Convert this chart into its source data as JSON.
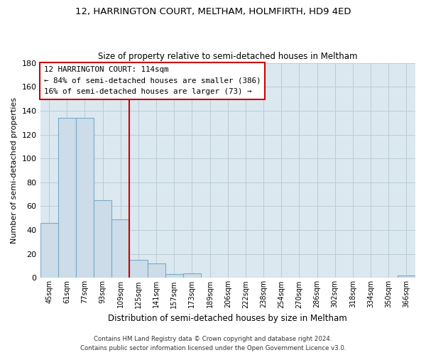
{
  "title": "12, HARRINGTON COURT, MELTHAM, HOLMFIRTH, HD9 4ED",
  "subtitle": "Size of property relative to semi-detached houses in Meltham",
  "xlabel": "Distribution of semi-detached houses by size in Meltham",
  "ylabel": "Number of semi-detached properties",
  "bar_labels": [
    "45sqm",
    "61sqm",
    "77sqm",
    "93sqm",
    "109sqm",
    "125sqm",
    "141sqm",
    "157sqm",
    "173sqm",
    "189sqm",
    "206sqm",
    "222sqm",
    "238sqm",
    "254sqm",
    "270sqm",
    "286sqm",
    "302sqm",
    "318sqm",
    "334sqm",
    "350sqm",
    "366sqm"
  ],
  "bar_values": [
    46,
    134,
    134,
    65,
    49,
    15,
    12,
    3,
    4,
    0,
    0,
    0,
    0,
    0,
    0,
    0,
    0,
    0,
    0,
    0,
    2
  ],
  "bar_color": "#ccdce8",
  "bar_edge_color": "#7aaac8",
  "ylim": [
    0,
    180
  ],
  "yticks": [
    0,
    20,
    40,
    60,
    80,
    100,
    120,
    140,
    160,
    180
  ],
  "vline_x": 4.5,
  "vline_color": "#cc0000",
  "annotation_title": "12 HARRINGTON COURT: 114sqm",
  "annotation_line1": "← 84% of semi-detached houses are smaller (386)",
  "annotation_line2": "16% of semi-detached houses are larger (73) →",
  "annotation_box_color": "#ffffff",
  "annotation_box_edge": "#cc0000",
  "footer_line1": "Contains HM Land Registry data © Crown copyright and database right 2024.",
  "footer_line2": "Contains public sector information licensed under the Open Government Licence v3.0.",
  "background_color": "#ffffff",
  "plot_bg_color": "#dce8f0",
  "grid_color": "#b8ccd8"
}
